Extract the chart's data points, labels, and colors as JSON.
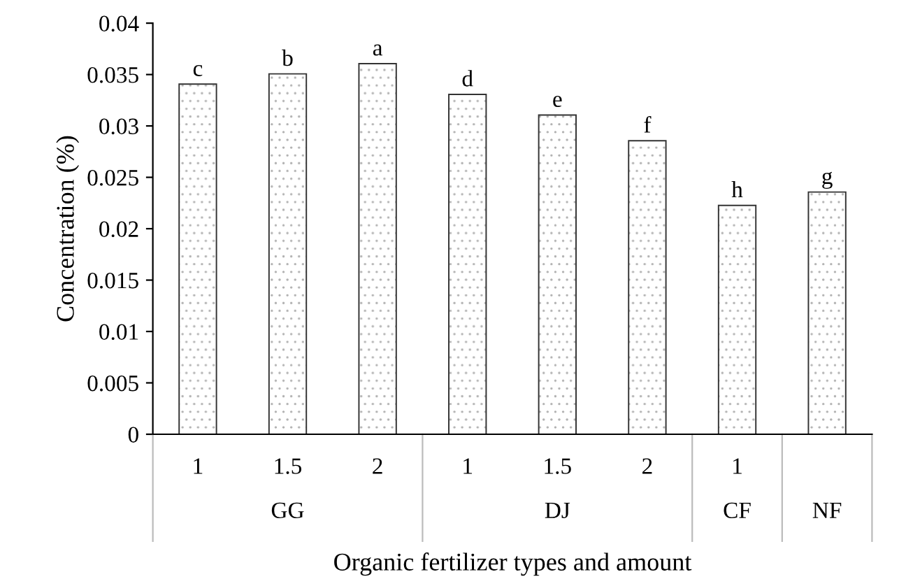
{
  "chart_data": {
    "type": "bar",
    "ylabel": "Concentration (%)",
    "xlabel": "Organic fertilizer types and amount",
    "categories": [
      "1",
      "1.5",
      "2",
      "1",
      "1.5",
      "2",
      "1",
      null
    ],
    "values": [
      0.034,
      0.035,
      0.036,
      0.033,
      0.031,
      0.0285,
      0.0222,
      0.0235
    ],
    "color": "#ffffff",
    "value_labels": [
      "c",
      "b",
      "a",
      "d",
      "e",
      "f",
      "h",
      "g"
    ],
    "annotations": [
      "GG",
      "DJ",
      "CF",
      "NF"
    ],
    "ylim": [
      0,
      0.04
    ],
    "yticks": [
      0,
      0.005,
      0.01,
      0.015,
      0.02,
      0.025,
      0.03,
      0.035,
      0.04
    ],
    "grid": false,
    "legend": false
  }
}
